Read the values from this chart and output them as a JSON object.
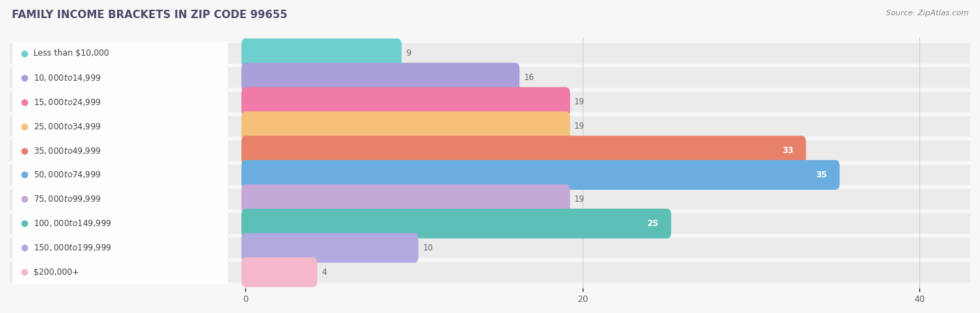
{
  "title": "FAMILY INCOME BRACKETS IN ZIP CODE 99655",
  "source": "Source: ZipAtlas.com",
  "categories": [
    "Less than $10,000",
    "$10,000 to $14,999",
    "$15,000 to $24,999",
    "$25,000 to $34,999",
    "$35,000 to $49,999",
    "$50,000 to $74,999",
    "$75,000 to $99,999",
    "$100,000 to $149,999",
    "$150,000 to $199,999",
    "$200,000+"
  ],
  "values": [
    9,
    16,
    19,
    19,
    33,
    35,
    19,
    25,
    10,
    4
  ],
  "bar_colors": [
    "#6DCFCE",
    "#A89FD8",
    "#F07BA8",
    "#F5C07A",
    "#E8816A",
    "#6AAEE0",
    "#C4A8D8",
    "#5BBFB5",
    "#B0AADE",
    "#F5B8CB"
  ],
  "row_bg_color": "#EBEBEB",
  "white_bg": "#FFFFFF",
  "xlim_left": -14,
  "xlim_right": 43,
  "label_inside_white": [
    false,
    false,
    false,
    false,
    true,
    true,
    false,
    true,
    false,
    false
  ],
  "value_white": [
    false,
    false,
    false,
    false,
    true,
    true,
    false,
    true,
    false,
    false
  ],
  "background_color": "#f7f7f7",
  "title_fontsize": 11,
  "source_fontsize": 8,
  "tick_fontsize": 9,
  "label_fontsize": 8.5,
  "value_fontsize": 8.5
}
